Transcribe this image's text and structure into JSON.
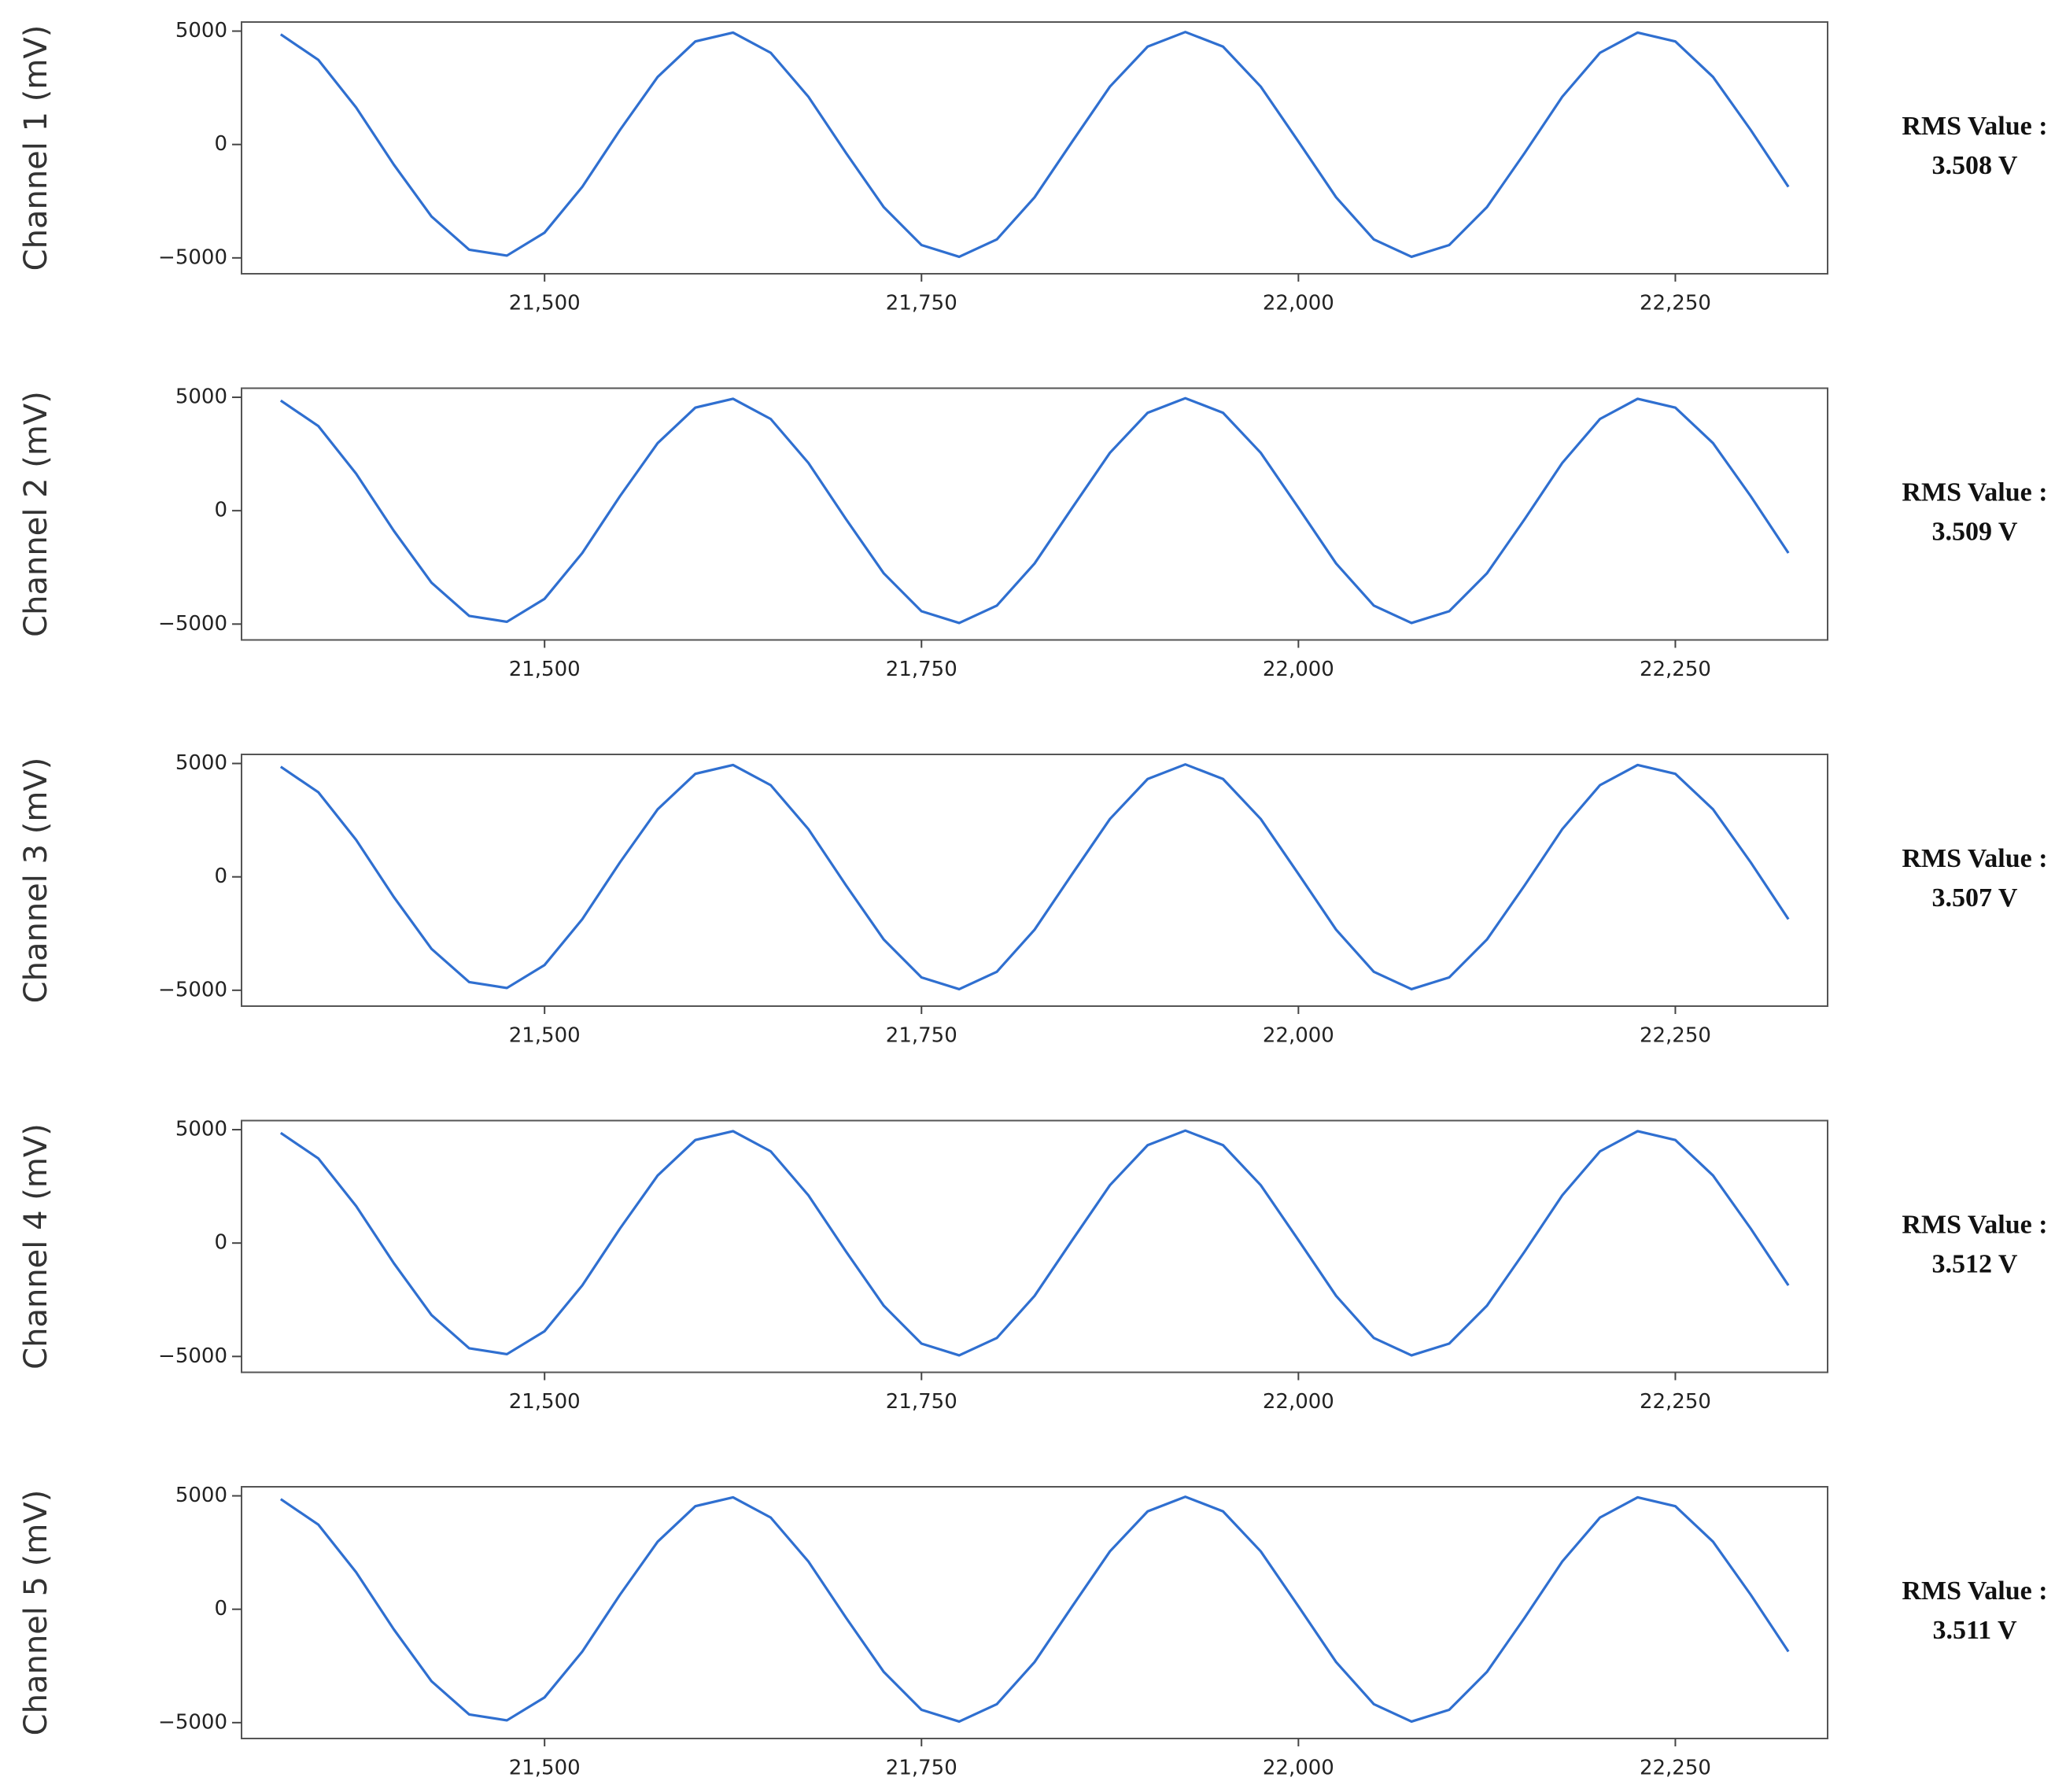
{
  "chart_data": [
    {
      "type": "line",
      "y_label": "Channel 1 (mV)",
      "annotation": [
        "RMS Value :",
        "3.508 V"
      ],
      "color": "#2f6fd0",
      "x": [
        21325,
        21350,
        21375,
        21400,
        21425,
        21450,
        21475,
        21500,
        21525,
        21550,
        21575,
        21600,
        21625,
        21650,
        21675,
        21700,
        21725,
        21750,
        21775,
        21800,
        21825,
        21850,
        21875,
        21900,
        21925,
        21950,
        21975,
        22000,
        22025,
        22050,
        22075,
        22100,
        22125,
        22150,
        22175,
        22200,
        22225,
        22250,
        22275,
        22300,
        22325
      ],
      "values": [
        4855,
        3727,
        1631,
        -887,
        -3175,
        -4640,
        -4900,
        -3886,
        -1866,
        639,
        2978,
        4545,
        4934,
        4043,
        2104,
        -380,
        -2766,
        -4435,
        -4953,
        -4183,
        -2329,
        130,
        2554,
        4317,
        4960,
        4317,
        2554,
        130,
        -2329,
        -4183,
        -4953,
        -4435,
        -2766,
        -380,
        2104,
        4043,
        4934,
        4545,
        2978,
        639,
        -1866
      ],
      "xlim": [
        21299,
        22351
      ],
      "ylim": [
        -5700,
        5400
      ],
      "xticks": [
        {
          "value": 21500,
          "label": "21,500"
        },
        {
          "value": 21750,
          "label": "21,750"
        },
        {
          "value": 22000,
          "label": "22,000"
        },
        {
          "value": 22250,
          "label": "22,250"
        }
      ],
      "yticks": [
        {
          "value": -5000,
          "label": "−5000"
        },
        0,
        5000
      ]
    },
    {
      "type": "line",
      "y_label": "Channel 2 (mV)",
      "annotation": [
        "RMS Value :",
        "3.509 V"
      ],
      "color": "#2f6fd0",
      "x": [
        21325,
        21350,
        21375,
        21400,
        21425,
        21450,
        21475,
        21500,
        21525,
        21550,
        21575,
        21600,
        21625,
        21650,
        21675,
        21700,
        21725,
        21750,
        21775,
        21800,
        21825,
        21850,
        21875,
        21900,
        21925,
        21950,
        21975,
        22000,
        22025,
        22050,
        22075,
        22100,
        22125,
        22150,
        22175,
        22200,
        22225,
        22250,
        22275,
        22300,
        22325
      ],
      "values": [
        4855,
        3727,
        1631,
        -887,
        -3175,
        -4640,
        -4900,
        -3886,
        -1866,
        639,
        2978,
        4545,
        4934,
        4043,
        2104,
        -380,
        -2766,
        -4435,
        -4953,
        -4183,
        -2329,
        130,
        2554,
        4317,
        4960,
        4317,
        2554,
        130,
        -2329,
        -4183,
        -4953,
        -4435,
        -2766,
        -380,
        2104,
        4043,
        4934,
        4545,
        2978,
        639,
        -1866
      ],
      "xlim": [
        21299,
        22351
      ],
      "ylim": [
        -5700,
        5400
      ],
      "xticks": [
        {
          "value": 21500,
          "label": "21,500"
        },
        {
          "value": 21750,
          "label": "21,750"
        },
        {
          "value": 22000,
          "label": "22,000"
        },
        {
          "value": 22250,
          "label": "22,250"
        }
      ],
      "yticks": [
        {
          "value": -5000,
          "label": "−5000"
        },
        0,
        5000
      ]
    },
    {
      "type": "line",
      "y_label": "Channel 3 (mV)",
      "annotation": [
        "RMS Value :",
        "3.507 V"
      ],
      "color": "#2f6fd0",
      "x": [
        21325,
        21350,
        21375,
        21400,
        21425,
        21450,
        21475,
        21500,
        21525,
        21550,
        21575,
        21600,
        21625,
        21650,
        21675,
        21700,
        21725,
        21750,
        21775,
        21800,
        21825,
        21850,
        21875,
        21900,
        21925,
        21950,
        21975,
        22000,
        22025,
        22050,
        22075,
        22100,
        22125,
        22150,
        22175,
        22200,
        22225,
        22250,
        22275,
        22300,
        22325
      ],
      "values": [
        4855,
        3727,
        1631,
        -887,
        -3175,
        -4640,
        -4900,
        -3886,
        -1866,
        639,
        2978,
        4545,
        4934,
        4043,
        2104,
        -380,
        -2766,
        -4435,
        -4953,
        -4183,
        -2329,
        130,
        2554,
        4317,
        4960,
        4317,
        2554,
        130,
        -2329,
        -4183,
        -4953,
        -4435,
        -2766,
        -380,
        2104,
        4043,
        4934,
        4545,
        2978,
        639,
        -1866
      ],
      "xlim": [
        21299,
        22351
      ],
      "ylim": [
        -5700,
        5400
      ],
      "xticks": [
        {
          "value": 21500,
          "label": "21,500"
        },
        {
          "value": 21750,
          "label": "21,750"
        },
        {
          "value": 22000,
          "label": "22,000"
        },
        {
          "value": 22250,
          "label": "22,250"
        }
      ],
      "yticks": [
        {
          "value": -5000,
          "label": "−5000"
        },
        0,
        5000
      ]
    },
    {
      "type": "line",
      "y_label": "Channel 4 (mV)",
      "annotation": [
        "RMS Value :",
        "3.512 V"
      ],
      "color": "#2f6fd0",
      "x": [
        21325,
        21350,
        21375,
        21400,
        21425,
        21450,
        21475,
        21500,
        21525,
        21550,
        21575,
        21600,
        21625,
        21650,
        21675,
        21700,
        21725,
        21750,
        21775,
        21800,
        21825,
        21850,
        21875,
        21900,
        21925,
        21950,
        21975,
        22000,
        22025,
        22050,
        22075,
        22100,
        22125,
        22150,
        22175,
        22200,
        22225,
        22250,
        22275,
        22300,
        22325
      ],
      "values": [
        4855,
        3727,
        1631,
        -887,
        -3175,
        -4640,
        -4900,
        -3886,
        -1866,
        639,
        2978,
        4545,
        4934,
        4043,
        2104,
        -380,
        -2766,
        -4435,
        -4953,
        -4183,
        -2329,
        130,
        2554,
        4317,
        4960,
        4317,
        2554,
        130,
        -2329,
        -4183,
        -4953,
        -4435,
        -2766,
        -380,
        2104,
        4043,
        4934,
        4545,
        2978,
        639,
        -1866
      ],
      "xlim": [
        21299,
        22351
      ],
      "ylim": [
        -5700,
        5400
      ],
      "xticks": [
        {
          "value": 21500,
          "label": "21,500"
        },
        {
          "value": 21750,
          "label": "21,750"
        },
        {
          "value": 22000,
          "label": "22,000"
        },
        {
          "value": 22250,
          "label": "22,250"
        }
      ],
      "yticks": [
        {
          "value": -5000,
          "label": "−5000"
        },
        0,
        5000
      ]
    },
    {
      "type": "line",
      "y_label": "Channel 5 (mV)",
      "annotation": [
        "RMS Value :",
        "3.511 V"
      ],
      "color": "#2f6fd0",
      "x": [
        21325,
        21350,
        21375,
        21400,
        21425,
        21450,
        21475,
        21500,
        21525,
        21550,
        21575,
        21600,
        21625,
        21650,
        21675,
        21700,
        21725,
        21750,
        21775,
        21800,
        21825,
        21850,
        21875,
        21900,
        21925,
        21950,
        21975,
        22000,
        22025,
        22050,
        22075,
        22100,
        22125,
        22150,
        22175,
        22200,
        22225,
        22250,
        22275,
        22300,
        22325
      ],
      "values": [
        4855,
        3727,
        1631,
        -887,
        -3175,
        -4640,
        -4900,
        -3886,
        -1866,
        639,
        2978,
        4545,
        4934,
        4043,
        2104,
        -380,
        -2766,
        -4435,
        -4953,
        -4183,
        -2329,
        130,
        2554,
        4317,
        4960,
        4317,
        2554,
        130,
        -2329,
        -4183,
        -4953,
        -4435,
        -2766,
        -380,
        2104,
        4043,
        4934,
        4545,
        2978,
        639,
        -1866
      ],
      "xlim": [
        21299,
        22351
      ],
      "ylim": [
        -5700,
        5400
      ],
      "xticks": [
        {
          "value": 21500,
          "label": "21,500"
        },
        {
          "value": 21750,
          "label": "21,750"
        },
        {
          "value": 22000,
          "label": "22,000"
        },
        {
          "value": 22250,
          "label": "22,250"
        }
      ],
      "yticks": [
        {
          "value": -5000,
          "label": "−5000"
        },
        0,
        5000
      ]
    }
  ]
}
